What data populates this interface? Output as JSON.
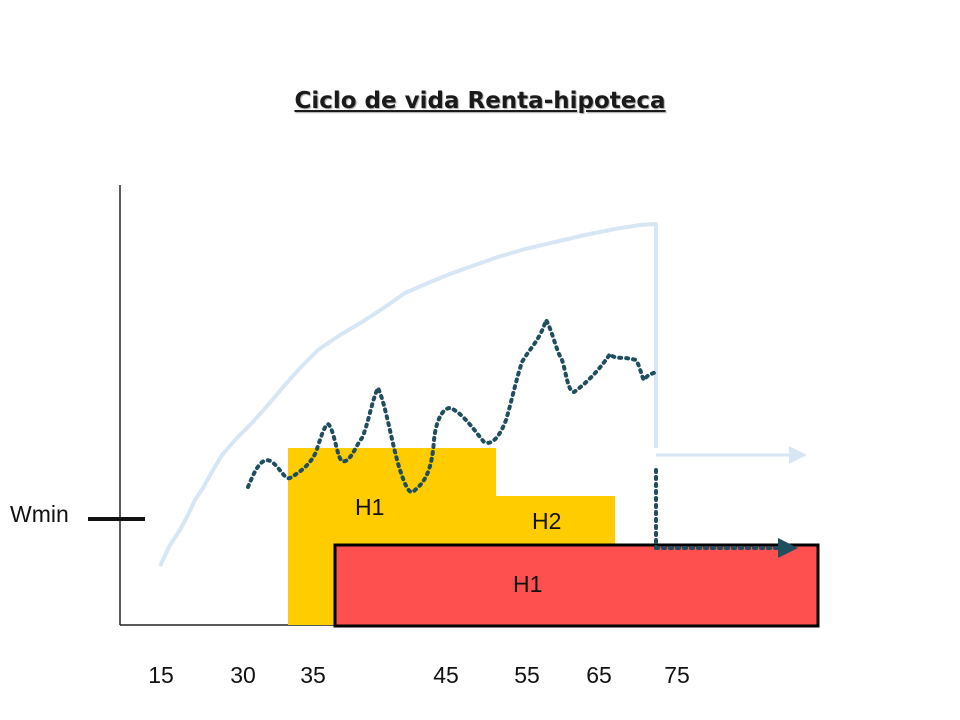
{
  "title": "Ciclo de vida Renta-hipoteca",
  "chart_data": {
    "type": "diagram",
    "title": "Ciclo de vida Renta-hipoteca",
    "x_ticks": [
      "15",
      "30",
      "35",
      "45",
      "55",
      "65",
      "75"
    ],
    "threshold_label": "Wmin",
    "blocks": [
      {
        "label": "H1",
        "color": "#ffcc00",
        "from": 35,
        "to": 55
      },
      {
        "label": "H2",
        "color": "#ffcc00",
        "from": 55,
        "to": 70
      },
      {
        "label": "H1",
        "color": "#ff5050",
        "from": 36,
        "to": 90
      }
    ],
    "series": [
      {
        "style": "solid",
        "color": "#d7e6f4"
      },
      {
        "style": "dotted",
        "color": "#1f4e5f"
      }
    ]
  }
}
